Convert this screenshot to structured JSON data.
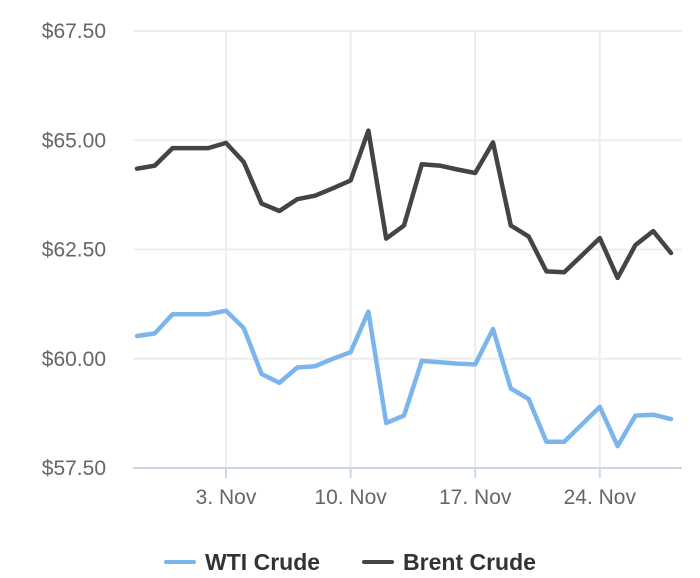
{
  "chart_data": {
    "type": "line",
    "title": "",
    "x_axis": {
      "tick_labels": [
        "3. Nov",
        "10. Nov",
        "17. Nov",
        "24. Nov"
      ],
      "tick_day_indices": [
        5,
        12,
        19,
        26
      ]
    },
    "y_axis": {
      "tick_labels": [
        "$67.50",
        "$65.00",
        "$62.50",
        "$60.00",
        "$57.50"
      ],
      "tick_values": [
        67.5,
        65.0,
        62.5,
        60.0,
        57.5
      ],
      "min": 57.5,
      "max": 67.5
    },
    "grid": true,
    "legend_position": "bottom",
    "dates": [
      "29. Oct",
      "30. Oct",
      "31. Oct",
      "1. Nov",
      "2. Nov",
      "3. Nov",
      "4. Nov",
      "5. Nov",
      "6. Nov",
      "7. Nov",
      "8. Nov",
      "9. Nov",
      "10. Nov",
      "11. Nov",
      "12. Nov",
      "13. Nov",
      "14. Nov",
      "15. Nov",
      "16. Nov",
      "17. Nov",
      "18. Nov",
      "19. Nov",
      "20. Nov",
      "21. Nov",
      "22. Nov",
      "23. Nov",
      "24. Nov",
      "25. Nov",
      "26. Nov",
      "27. Nov",
      "28. Nov"
    ],
    "series": [
      {
        "name": "WTI Crude",
        "color": "#7cb5ec",
        "values": [
          60.52,
          60.58,
          61.02,
          61.02,
          61.02,
          61.1,
          60.7,
          59.65,
          59.45,
          59.8,
          59.83,
          60.0,
          60.15,
          61.08,
          58.53,
          58.7,
          59.95,
          59.92,
          59.89,
          59.87,
          60.68,
          59.32,
          59.08,
          58.1,
          58.1,
          58.5,
          58.9,
          58.0,
          58.7,
          58.72,
          58.62
        ]
      },
      {
        "name": "Brent Crude",
        "color": "#434348",
        "values": [
          64.35,
          64.42,
          64.82,
          64.82,
          64.82,
          64.94,
          64.5,
          63.55,
          63.38,
          63.65,
          63.73,
          63.9,
          64.08,
          65.22,
          62.75,
          63.05,
          64.45,
          64.42,
          64.33,
          64.25,
          64.95,
          63.05,
          62.8,
          62.0,
          61.98,
          62.37,
          62.76,
          61.85,
          62.6,
          62.92,
          62.42
        ]
      }
    ]
  },
  "colors": {
    "background": "#ffffff",
    "grid_line": "#ededed",
    "axis_line": "#ccd6eb",
    "axis_label": "#666666",
    "legend_text": "#333333",
    "wti": "#7cb5ec",
    "brent": "#434348"
  }
}
